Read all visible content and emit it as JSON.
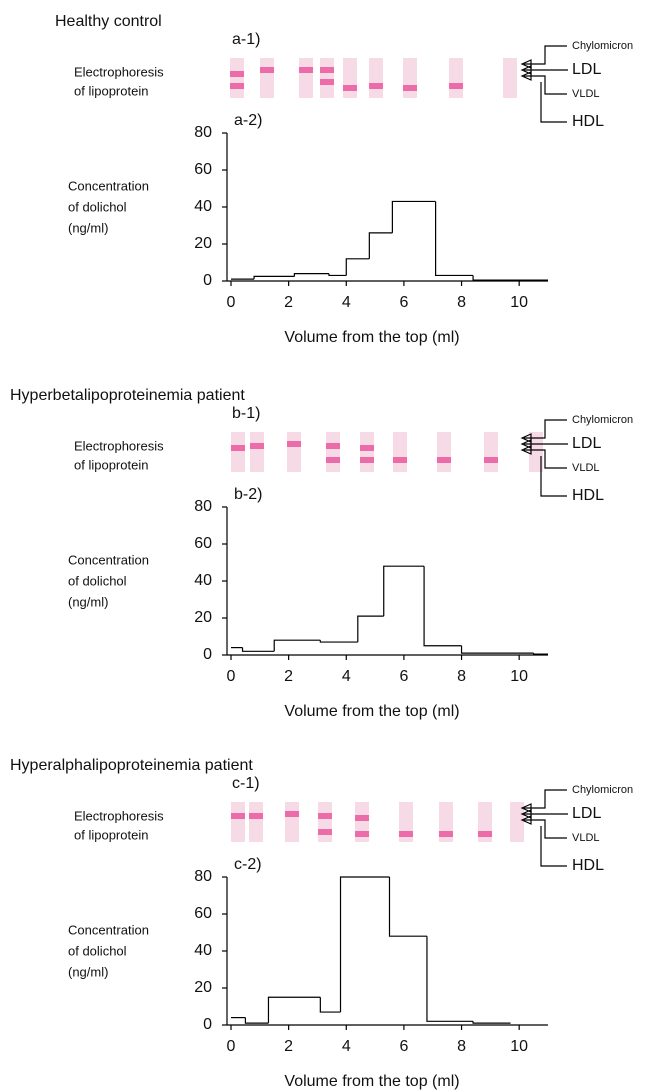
{
  "chart_data": [
    {
      "type": "histogram",
      "title": "Healthy control",
      "strip_panel": "a-1)",
      "plot_panel": "a-2)",
      "strip_label": [
        "Electrophoresis",
        "of lipoprotein"
      ],
      "band_labels": [
        "Chylomicron",
        "LDL",
        "VLDL",
        "HDL"
      ],
      "y_label": [
        "Concentration",
        "of dolichol",
        "(ng/ml)"
      ],
      "x_label": "Volume from the top (ml)",
      "bins": [
        0,
        0.8,
        2.2,
        3.4,
        4,
        4.8,
        5.6,
        7.1,
        8.4,
        11
      ],
      "values": [
        1,
        2.5,
        4,
        3,
        12,
        26,
        43,
        3,
        0.5
      ],
      "color": "#000000",
      "xlim": [
        0,
        11
      ],
      "ylim": [
        0,
        80
      ],
      "xticks": [
        0,
        2,
        4,
        6,
        8,
        10
      ],
      "yticks": [
        0,
        20,
        40,
        60,
        80
      ]
    },
    {
      "type": "histogram",
      "title": "Hyperbetalipoproteinemia patient",
      "strip_panel": "b-1)",
      "plot_panel": "b-2)",
      "strip_label": [
        "Electrophoresis",
        "of lipoprotein"
      ],
      "band_labels": [
        "Chylomicron",
        "LDL",
        "VLDL",
        "HDL"
      ],
      "y_label": [
        "Concentration",
        "of dolichol",
        "(ng/ml)"
      ],
      "x_label": "Volume from the top (ml)",
      "bins": [
        0,
        0.4,
        1.5,
        3.1,
        4.4,
        5.3,
        6.7,
        8,
        10.5,
        11
      ],
      "values": [
        4,
        2,
        8,
        7,
        21,
        48,
        5,
        1,
        0.5
      ],
      "color": "#000000",
      "xlim": [
        0,
        11
      ],
      "ylim": [
        0,
        80
      ],
      "xticks": [
        0,
        2,
        4,
        6,
        8,
        10
      ],
      "yticks": [
        0,
        20,
        40,
        60,
        80
      ]
    },
    {
      "type": "histogram",
      "title": "Hyperalphalipoproteinemia patient",
      "strip_panel": "c-1)",
      "plot_panel": "c-2)",
      "strip_label": [
        "Electrophoresis",
        "of lipoprotein"
      ],
      "band_labels": [
        "Chylomicron",
        "LDL",
        "VLDL",
        "HDL"
      ],
      "y_label": [
        "Concentration",
        "of dolichol",
        "(ng/ml)"
      ],
      "x_label": "Volume from the top (ml)",
      "bins": [
        0,
        0.5,
        1.3,
        3.1,
        3.8,
        5.5,
        6.8,
        8.4,
        9.7
      ],
      "values": [
        4,
        1,
        15,
        7,
        80,
        48,
        2,
        1
      ],
      "color": "#000000",
      "xlim": [
        0,
        11
      ],
      "ylim": [
        0,
        80
      ],
      "xticks": [
        0,
        2,
        4,
        6,
        8,
        10
      ],
      "yticks": [
        0,
        20,
        40,
        60,
        80
      ]
    }
  ]
}
